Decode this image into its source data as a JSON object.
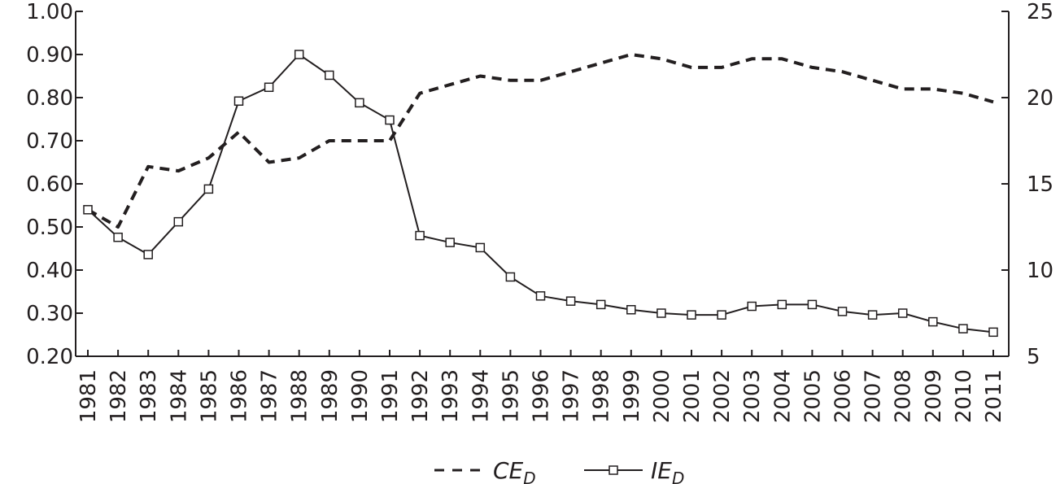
{
  "chart_data": {
    "type": "line",
    "title": "",
    "xlabel": "",
    "ylabel_left": "",
    "ylabel_right": "",
    "x": [
      "1981",
      "1982",
      "1983",
      "1984",
      "1985",
      "1986",
      "1987",
      "1988",
      "1989",
      "1990",
      "1991",
      "1992",
      "1993",
      "1994",
      "1995",
      "1996",
      "1997",
      "1998",
      "1999",
      "2000",
      "2001",
      "2002",
      "2003",
      "2004",
      "2005",
      "2006",
      "2007",
      "2008",
      "2009",
      "2010",
      "2011"
    ],
    "ylim_left": [
      0.2,
      1.0
    ],
    "yticks_left": [
      "0.20",
      "0.30",
      "0.40",
      "0.50",
      "0.60",
      "0.70",
      "0.80",
      "0.90",
      "1.00"
    ],
    "ylim_right": [
      5,
      25
    ],
    "yticks_right": [
      "5",
      "10",
      "15",
      "20",
      "25"
    ],
    "grid": false,
    "legend_position": "bottom-center",
    "series": [
      {
        "name": "CE",
        "name_subscript": "D",
        "axis": "left",
        "style": "dashed",
        "color": "#231f20",
        "values": [
          0.54,
          0.5,
          0.64,
          0.63,
          0.66,
          0.72,
          0.65,
          0.66,
          0.7,
          0.7,
          0.7,
          0.81,
          0.83,
          0.85,
          0.84,
          0.84,
          0.86,
          0.88,
          0.9,
          0.89,
          0.87,
          0.87,
          0.89,
          0.89,
          0.87,
          0.86,
          0.84,
          0.82,
          0.82,
          0.81,
          0.79
        ]
      },
      {
        "name": "IE",
        "name_subscript": "D",
        "axis": "right",
        "style": "solid-square-markers",
        "color": "#231f20",
        "values": [
          13.5,
          11.9,
          10.9,
          12.8,
          14.7,
          19.8,
          20.6,
          22.5,
          21.3,
          19.7,
          18.7,
          12.0,
          11.6,
          11.3,
          9.6,
          8.5,
          8.2,
          8.0,
          7.7,
          7.5,
          7.4,
          7.4,
          7.9,
          8.0,
          8.0,
          7.6,
          7.4,
          7.5,
          7.0,
          6.6,
          6.4
        ]
      }
    ]
  }
}
